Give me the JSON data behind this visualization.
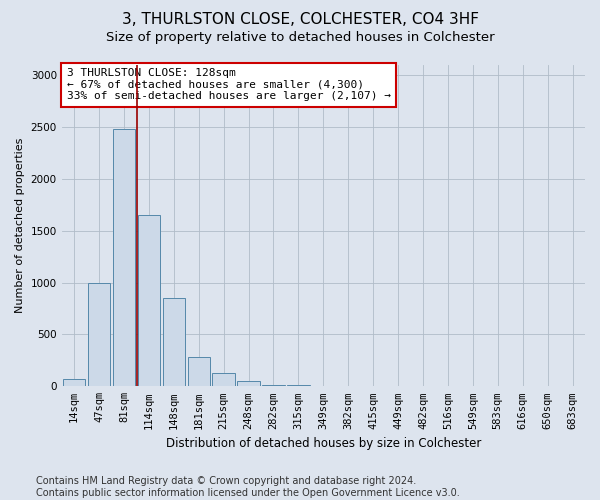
{
  "title1": "3, THURLSTON CLOSE, COLCHESTER, CO4 3HF",
  "title2": "Size of property relative to detached houses in Colchester",
  "xlabel": "Distribution of detached houses by size in Colchester",
  "ylabel": "Number of detached properties",
  "bin_labels": [
    "14sqm",
    "47sqm",
    "81sqm",
    "114sqm",
    "148sqm",
    "181sqm",
    "215sqm",
    "248sqm",
    "282sqm",
    "315sqm",
    "349sqm",
    "382sqm",
    "415sqm",
    "449sqm",
    "482sqm",
    "516sqm",
    "549sqm",
    "583sqm",
    "616sqm",
    "650sqm",
    "683sqm"
  ],
  "bar_heights": [
    75,
    1000,
    2480,
    1650,
    850,
    280,
    130,
    50,
    15,
    10,
    5,
    2,
    0,
    3,
    0,
    0,
    0,
    0,
    0,
    0,
    0
  ],
  "bar_color": "#ccd9e8",
  "bar_edge_color": "#5588aa",
  "vline_x": 2.52,
  "vline_color": "#990000",
  "annotation_text": "3 THURLSTON CLOSE: 128sqm\n← 67% of detached houses are smaller (4,300)\n33% of semi-detached houses are larger (2,107) →",
  "annotation_box_color": "#ffffff",
  "annotation_box_edge": "#cc0000",
  "ylim": [
    0,
    3100
  ],
  "yticks": [
    0,
    500,
    1000,
    1500,
    2000,
    2500,
    3000
  ],
  "bg_color": "#dde4ee",
  "plot_bg_color": "#dde4ee",
  "footer": "Contains HM Land Registry data © Crown copyright and database right 2024.\nContains public sector information licensed under the Open Government Licence v3.0.",
  "title1_fontsize": 11,
  "title2_fontsize": 9.5,
  "annotation_fontsize": 8,
  "footer_fontsize": 7,
  "ylabel_fontsize": 8,
  "xlabel_fontsize": 8.5,
  "tick_fontsize": 7.5
}
